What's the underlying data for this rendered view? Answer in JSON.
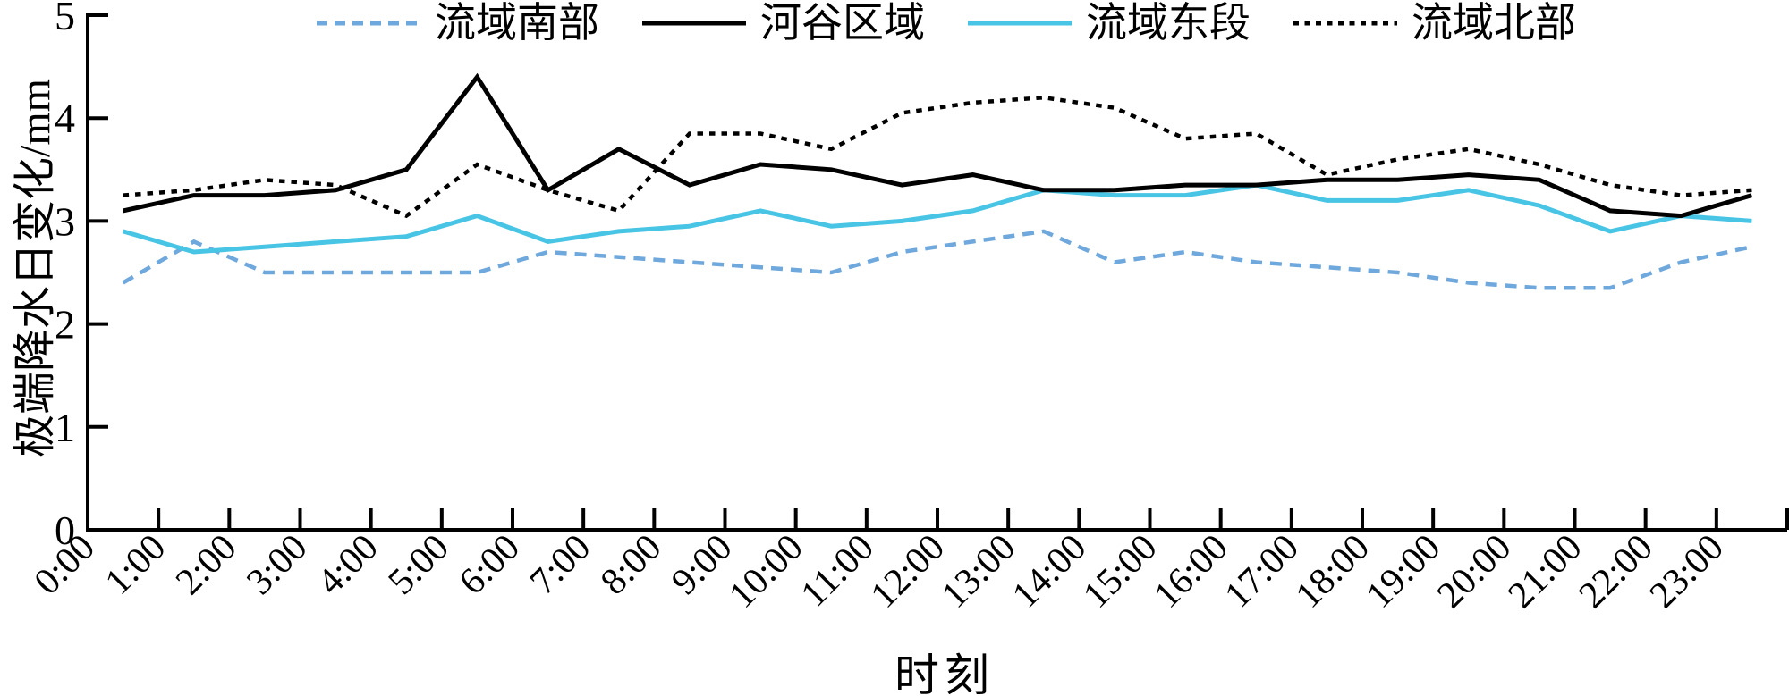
{
  "chart_data": {
    "type": "line",
    "title": "",
    "xlabel": "时刻",
    "ylabel": "极端降水日变化/mm",
    "ylim": [
      0,
      5
    ],
    "yticks": [
      0,
      1,
      2,
      3,
      4,
      5
    ],
    "grid": false,
    "legend_position": "top",
    "categories": [
      "0:00",
      "1:00",
      "2:00",
      "3:00",
      "4:00",
      "5:00",
      "6:00",
      "7:00",
      "8:00",
      "9:00",
      "10:00",
      "11:00",
      "12:00",
      "13:00",
      "14:00",
      "15:00",
      "16:00",
      "17:00",
      "18:00",
      "19:00",
      "20:00",
      "21:00",
      "22:00",
      "23:00"
    ],
    "series": [
      {
        "key": "south",
        "name": "流域南部",
        "color": "#6FA8DC",
        "style": "dashed",
        "values": [
          2.4,
          2.8,
          2.5,
          2.5,
          2.5,
          2.5,
          2.7,
          2.65,
          2.6,
          2.55,
          2.5,
          2.7,
          2.8,
          2.9,
          2.6,
          2.7,
          2.6,
          2.55,
          2.5,
          2.4,
          2.35,
          2.35,
          2.6,
          2.75
        ]
      },
      {
        "key": "valley",
        "name": "河谷区域",
        "color": "#000000",
        "style": "solid",
        "values": [
          3.1,
          3.25,
          3.25,
          3.3,
          3.5,
          4.4,
          3.3,
          3.7,
          3.35,
          3.55,
          3.5,
          3.35,
          3.45,
          3.3,
          3.3,
          3.35,
          3.35,
          3.4,
          3.4,
          3.45,
          3.4,
          3.1,
          3.05,
          3.25
        ]
      },
      {
        "key": "east",
        "name": "流域东段",
        "color": "#48C4E4",
        "style": "solid",
        "values": [
          2.9,
          2.7,
          2.75,
          2.8,
          2.85,
          3.05,
          2.8,
          2.9,
          2.95,
          3.1,
          2.95,
          3.0,
          3.1,
          3.3,
          3.25,
          3.25,
          3.35,
          3.2,
          3.2,
          3.3,
          3.15,
          2.9,
          3.05,
          3.0
        ]
      },
      {
        "key": "north",
        "name": "流域北部",
        "color": "#000000",
        "style": "dotted",
        "values": [
          3.25,
          3.3,
          3.4,
          3.35,
          3.05,
          3.55,
          3.3,
          3.1,
          3.85,
          3.85,
          3.7,
          4.05,
          4.15,
          4.2,
          4.1,
          3.8,
          3.85,
          3.45,
          3.6,
          3.7,
          3.55,
          3.35,
          3.25,
          3.3
        ]
      }
    ]
  }
}
